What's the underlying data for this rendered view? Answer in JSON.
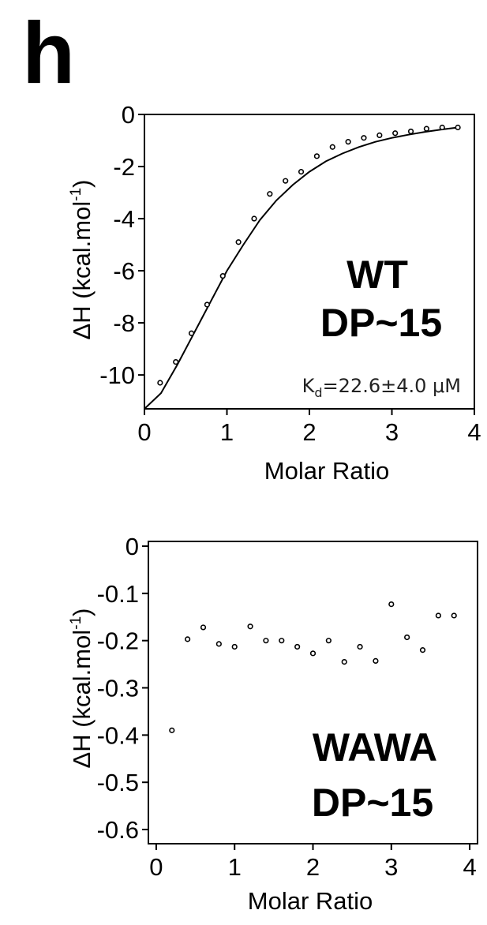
{
  "panel_letter": "h",
  "chart_data": [
    {
      "type": "scatter",
      "title": "",
      "xlabel": "Molar Ratio",
      "ylabel": "ΔH (kcal.mol",
      "ylabel_sup": "-1",
      "ylabel_close": ")",
      "xlim": [
        0,
        4
      ],
      "ylim": [
        -11.3,
        0
      ],
      "xticks": [
        0,
        1,
        2,
        3,
        4
      ],
      "yticks": [
        0,
        -2,
        -4,
        -6,
        -8,
        -10
      ],
      "xtick_labels": [
        "0",
        "1",
        "2",
        "3",
        "4"
      ],
      "ytick_labels": [
        "0",
        "-2",
        "-4",
        "-6",
        "-8",
        "-10"
      ],
      "annotation_line1": "WT",
      "annotation_line2": "DP~15",
      "kd_prefix": "K",
      "kd_sub": "d",
      "kd_value": "=22.6±4.0 μM",
      "grid": false,
      "points": {
        "x": [
          0.19,
          0.38,
          0.57,
          0.76,
          0.95,
          1.14,
          1.33,
          1.52,
          1.71,
          1.9,
          2.09,
          2.28,
          2.47,
          2.66,
          2.85,
          3.04,
          3.23,
          3.42,
          3.61,
          3.8
        ],
        "y": [
          -10.3,
          -9.5,
          -8.4,
          -7.3,
          -6.2,
          -4.9,
          -4.0,
          -3.05,
          -2.55,
          -2.2,
          -1.6,
          -1.25,
          -1.05,
          -0.9,
          -0.8,
          -0.72,
          -0.65,
          -0.55,
          -0.5,
          -0.5
        ]
      },
      "fit": {
        "x": [
          0.0,
          0.2,
          0.4,
          0.6,
          0.8,
          1.0,
          1.2,
          1.4,
          1.6,
          1.8,
          2.0,
          2.2,
          2.4,
          2.6,
          2.8,
          3.0,
          3.2,
          3.4,
          3.6,
          3.8
        ],
        "y": [
          -11.3,
          -10.7,
          -9.6,
          -8.4,
          -7.2,
          -6.0,
          -5.0,
          -4.05,
          -3.3,
          -2.7,
          -2.2,
          -1.8,
          -1.5,
          -1.25,
          -1.05,
          -0.9,
          -0.78,
          -0.67,
          -0.58,
          -0.5
        ]
      }
    },
    {
      "type": "scatter",
      "title": "",
      "xlabel": "Molar Ratio",
      "ylabel": "ΔH (kcal.mol",
      "ylabel_sup": "-1",
      "ylabel_close": ")",
      "xlim": [
        -0.1,
        4.1
      ],
      "ylim": [
        -0.63,
        0.01
      ],
      "xticks": [
        0,
        1,
        2,
        3,
        4
      ],
      "yticks": [
        0,
        -0.1,
        -0.2,
        -0.3,
        -0.4,
        -0.5,
        -0.6
      ],
      "xtick_labels": [
        "0",
        "1",
        "2",
        "3",
        "4"
      ],
      "ytick_labels": [
        "0",
        "-0.1",
        "-0.2",
        "-0.3",
        "-0.4",
        "-0.5",
        "-0.6"
      ],
      "annotation_line1": "WAWA",
      "annotation_line2": "DP~15",
      "grid": false,
      "points": {
        "x": [
          0.2,
          0.4,
          0.6,
          0.8,
          1.0,
          1.2,
          1.4,
          1.6,
          1.8,
          2.0,
          2.2,
          2.4,
          2.6,
          2.8,
          3.0,
          3.2,
          3.4,
          3.6,
          3.8
        ],
        "y": [
          -0.39,
          -0.197,
          -0.172,
          -0.207,
          -0.213,
          -0.17,
          -0.2,
          -0.2,
          -0.213,
          -0.227,
          -0.2,
          -0.245,
          -0.213,
          -0.243,
          -0.123,
          -0.193,
          -0.22,
          -0.147,
          -0.147
        ]
      }
    }
  ]
}
